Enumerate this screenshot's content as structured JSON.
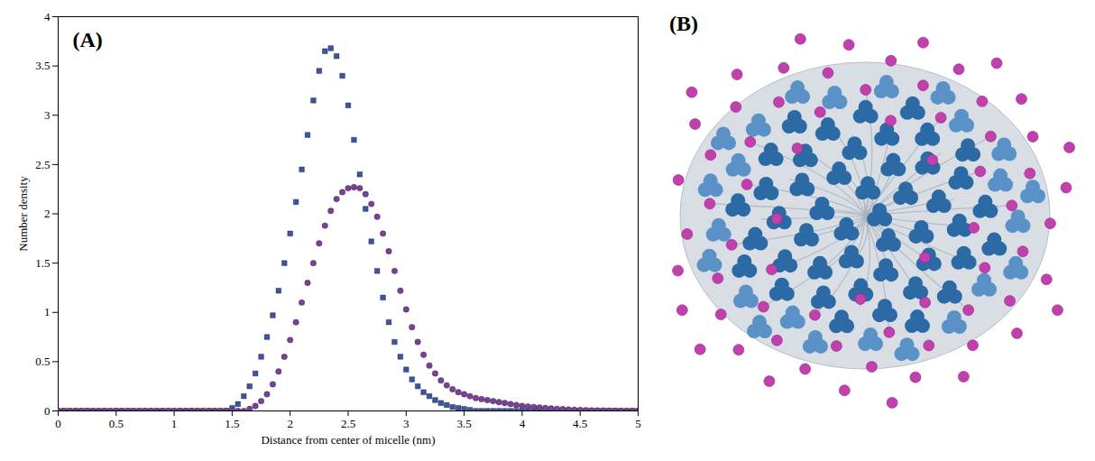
{
  "chart_data": {
    "type": "scatter",
    "panel_label": "(A)",
    "x_label": "Distance from center of micelle (nm)",
    "y_label": "Number density",
    "x": [
      0,
      0.05,
      0.1,
      0.15,
      0.2,
      0.25,
      0.3,
      0.35,
      0.4,
      0.45,
      0.5,
      0.55,
      0.6,
      0.65,
      0.7,
      0.75,
      0.8,
      0.85,
      0.9,
      0.95,
      1,
      1.05,
      1.1,
      1.15,
      1.2,
      1.25,
      1.3,
      1.35,
      1.4,
      1.45,
      1.5,
      1.55,
      1.6,
      1.65,
      1.7,
      1.75,
      1.8,
      1.85,
      1.9,
      1.95,
      2,
      2.05,
      2.1,
      2.15,
      2.2,
      2.25,
      2.3,
      2.35,
      2.4,
      2.45,
      2.5,
      2.55,
      2.6,
      2.65,
      2.7,
      2.75,
      2.8,
      2.85,
      2.9,
      2.95,
      3,
      3.05,
      3.1,
      3.15,
      3.2,
      3.25,
      3.3,
      3.35,
      3.4,
      3.45,
      3.5,
      3.55,
      3.6,
      3.65,
      3.7,
      3.75,
      3.8,
      3.85,
      3.9,
      3.95,
      4,
      4.05,
      4.1,
      4.15,
      4.2,
      4.25,
      4.3,
      4.35,
      4.4,
      4.45,
      4.5,
      4.55,
      4.6,
      4.65,
      4.7,
      4.75,
      4.8,
      4.85,
      4.9,
      4.95,
      5
    ],
    "series": [
      {
        "color": "#3a55a8",
        "marker": "square",
        "values": [
          0,
          0,
          0,
          0,
          0,
          0,
          0,
          0,
          0,
          0,
          0,
          0,
          0,
          0,
          0,
          0,
          0,
          0,
          0,
          0,
          0,
          0,
          0,
          0,
          0,
          0,
          0,
          0,
          0,
          0,
          0.03,
          0.07,
          0.15,
          0.25,
          0.38,
          0.55,
          0.75,
          0.97,
          1.22,
          1.5,
          1.8,
          2.12,
          2.45,
          2.8,
          3.15,
          3.45,
          3.65,
          3.68,
          3.6,
          3.4,
          3.1,
          2.75,
          2.4,
          2.05,
          1.72,
          1.42,
          1.15,
          0.9,
          0.7,
          0.55,
          0.42,
          0.32,
          0.25,
          0.19,
          0.15,
          0.11,
          0.08,
          0.06,
          0.04,
          0.03,
          0.02,
          0.01,
          0,
          0,
          0,
          0,
          0,
          0,
          0,
          0,
          0,
          0,
          0,
          0,
          0,
          0,
          0,
          0,
          0,
          0,
          0,
          0,
          0,
          0,
          0,
          0,
          0,
          0,
          0,
          0,
          0
        ]
      },
      {
        "color": "#7d3f9c",
        "marker": "circle",
        "values": [
          0,
          0,
          0,
          0,
          0,
          0,
          0,
          0,
          0,
          0,
          0,
          0,
          0,
          0,
          0,
          0,
          0,
          0,
          0,
          0,
          0,
          0,
          0,
          0,
          0,
          0,
          0,
          0,
          0,
          0,
          0,
          0,
          0,
          0.02,
          0.05,
          0.1,
          0.17,
          0.27,
          0.4,
          0.55,
          0.72,
          0.9,
          1.1,
          1.3,
          1.5,
          1.7,
          1.88,
          2.03,
          2.15,
          2.22,
          2.26,
          2.27,
          2.26,
          2.2,
          2.1,
          1.97,
          1.8,
          1.62,
          1.42,
          1.22,
          1.03,
          0.85,
          0.7,
          0.57,
          0.46,
          0.38,
          0.31,
          0.26,
          0.22,
          0.19,
          0.17,
          0.15,
          0.13,
          0.12,
          0.11,
          0.1,
          0.09,
          0.08,
          0.07,
          0.06,
          0.05,
          0.045,
          0.04,
          0.035,
          0.03,
          0.025,
          0.02,
          0.018,
          0.015,
          0.012,
          0.01,
          0.008,
          0.006,
          0.005,
          0.004,
          0.003,
          0.002,
          0.001,
          0,
          0,
          0
        ]
      }
    ],
    "xlim": [
      0,
      5
    ],
    "xticks": [
      0,
      0.5,
      1,
      1.5,
      2,
      2.5,
      3,
      3.5,
      4,
      4.5,
      5
    ],
    "ylim": [
      0,
      4
    ],
    "yticks": [
      0,
      0.5,
      1,
      1.5,
      2,
      2.5,
      3,
      3.5,
      4
    ],
    "grid": false
  },
  "panel_b": {
    "panel_label": "(B)"
  }
}
